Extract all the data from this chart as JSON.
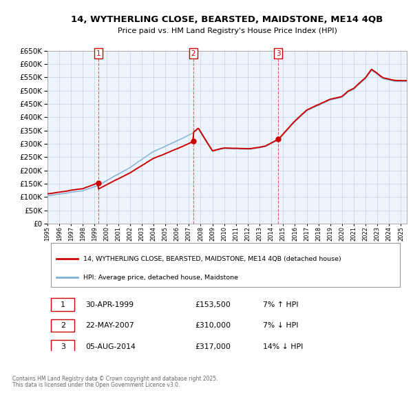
{
  "title": "14, WYTHERLING CLOSE, BEARSTED, MAIDSTONE, ME14 4QB",
  "subtitle": "Price paid vs. HM Land Registry's House Price Index (HPI)",
  "price_paid_color": "#cc0000",
  "hpi_color": "#80b0d8",
  "transactions": [
    {
      "num": 1,
      "date": "30-APR-1999",
      "price": 153500,
      "year": 1999.33,
      "hpi_diff": "7% ↑ HPI"
    },
    {
      "num": 2,
      "date": "22-MAY-2007",
      "price": 310000,
      "year": 2007.38,
      "hpi_diff": "7% ↓ HPI"
    },
    {
      "num": 3,
      "date": "05-AUG-2014",
      "price": 317000,
      "year": 2014.59,
      "hpi_diff": "14% ↓ HPI"
    }
  ],
  "legend_label_red": "14, WYTHERLING CLOSE, BEARSTED, MAIDSTONE, ME14 4QB (detached house)",
  "legend_label_blue": "HPI: Average price, detached house, Maidstone",
  "footer_line1": "Contains HM Land Registry data © Crown copyright and database right 2025.",
  "footer_line2": "This data is licensed under the Open Government Licence v3.0.",
  "background_color": "#ffffff",
  "grid_color": "#c8d8e8",
  "xmin": 1995,
  "xmax": 2025.5,
  "ymin": 0,
  "ymax": 650000,
  "ytick_step": 50000
}
